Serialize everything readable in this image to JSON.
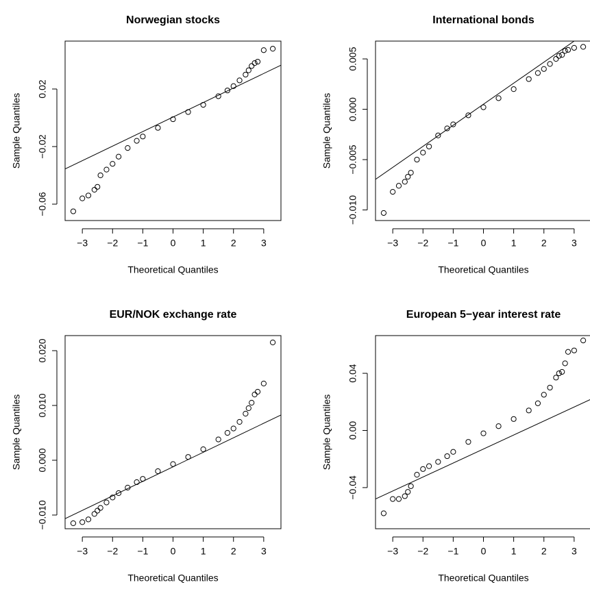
{
  "chart_data": [
    {
      "type": "scatter",
      "title": "Norwegian stocks",
      "xlabel": "Theoretical Quantiles",
      "ylabel": "Sample Quantiles",
      "color": "#000000",
      "x": [
        -3.3,
        -3.0,
        -2.8,
        -2.6,
        -2.5,
        -2.4,
        -2.2,
        -2.0,
        -1.8,
        -1.5,
        -1.2,
        -1.0,
        -0.5,
        0,
        0.5,
        1.0,
        1.5,
        1.8,
        2.0,
        2.2,
        2.4,
        2.5,
        2.6,
        2.7,
        2.8,
        3.0,
        3.3
      ],
      "y": [
        -0.065,
        -0.056,
        -0.054,
        -0.05,
        -0.048,
        -0.04,
        -0.036,
        -0.032,
        -0.027,
        -0.021,
        -0.016,
        -0.013,
        -0.007,
        -0.001,
        0.004,
        0.009,
        0.015,
        0.019,
        0.022,
        0.026,
        0.03,
        0.033,
        0.036,
        0.038,
        0.039,
        0.047,
        0.048
      ],
      "reference_line": {
        "intercept": 0.0005,
        "slope": 0.0101
      },
      "xlim": [
        -3.57,
        3.57
      ],
      "ylim": [
        -0.0714,
        0.0533
      ],
      "xticks": [
        {
          "value": -3,
          "label": "−3"
        },
        {
          "value": -2,
          "label": "−2"
        },
        {
          "value": -1,
          "label": "−1"
        },
        0,
        1,
        2,
        3
      ],
      "yticks": [
        {
          "value": -0.06,
          "label": "−0.06"
        },
        {
          "value": -0.02,
          "label": "−0.02"
        },
        0.02
      ]
    },
    {
      "type": "scatter",
      "title": "International bonds",
      "xlabel": "Theoretical Quantiles",
      "ylabel": "Sample Quantiles",
      "color": "#000000",
      "x": [
        -3.3,
        -3.0,
        -2.8,
        -2.6,
        -2.5,
        -2.4,
        -2.2,
        -2.0,
        -1.8,
        -1.5,
        -1.2,
        -1.0,
        -0.5,
        0,
        0.5,
        1.0,
        1.5,
        1.8,
        2.0,
        2.2,
        2.4,
        2.5,
        2.6,
        2.7,
        2.8,
        3.0,
        3.3
      ],
      "y": [
        -0.0103,
        -0.0082,
        -0.0076,
        -0.0072,
        -0.0067,
        -0.0063,
        -0.005,
        -0.0043,
        -0.0037,
        -0.0026,
        -0.0019,
        -0.0015,
        -0.0006,
        0.0002,
        0.0011,
        0.002,
        0.003,
        0.0036,
        0.004,
        0.0045,
        0.005,
        0.0053,
        0.0054,
        0.0058,
        0.0059,
        0.0061,
        0.0062
      ],
      "reference_line": {
        "intercept": 0.0005,
        "slope": 0.00209
      },
      "xlim": [
        -3.57,
        3.57
      ],
      "ylim": [
        -0.01105,
        0.00677
      ],
      "xticks": [
        {
          "value": -3,
          "label": "−3"
        },
        {
          "value": -2,
          "label": "−2"
        },
        {
          "value": -1,
          "label": "−1"
        },
        0,
        1,
        2,
        3
      ],
      "yticks": [
        {
          "value": -0.01,
          "label": "−0.010"
        },
        {
          "value": -0.005,
          "label": "−0.005"
        },
        {
          "value": 0,
          "label": "0.000"
        },
        0.005
      ]
    },
    {
      "type": "scatter",
      "title": "EUR/NOK exchange rate",
      "xlabel": "Theoretical Quantiles",
      "ylabel": "Sample Quantiles",
      "color": "#000000",
      "x": [
        -3.3,
        -3.0,
        -2.8,
        -2.6,
        -2.5,
        -2.4,
        -2.2,
        -2.0,
        -1.8,
        -1.5,
        -1.2,
        -1.0,
        -0.5,
        0,
        0.5,
        1.0,
        1.5,
        1.8,
        2.0,
        2.2,
        2.4,
        2.5,
        2.6,
        2.7,
        2.8,
        3.0,
        3.3
      ],
      "y": [
        -0.0115,
        -0.0113,
        -0.0108,
        -0.0098,
        -0.0092,
        -0.0087,
        -0.0077,
        -0.0068,
        -0.006,
        -0.005,
        -0.004,
        -0.0034,
        -0.002,
        -0.0007,
        0.0006,
        0.002,
        0.0038,
        0.005,
        0.0058,
        0.007,
        0.0085,
        0.0095,
        0.0105,
        0.012,
        0.0125,
        0.014,
        0.0215
      ],
      "reference_line": {
        "intercept": -0.0012,
        "slope": 0.00265
      },
      "xlim": [
        -3.57,
        3.57
      ],
      "ylim": [
        -0.0125,
        0.02275
      ],
      "xticks": [
        {
          "value": -3,
          "label": "−3"
        },
        {
          "value": -2,
          "label": "−2"
        },
        {
          "value": -1,
          "label": "−1"
        },
        0,
        1,
        2,
        3
      ],
      "yticks": [
        {
          "value": -0.01,
          "label": "−0.010"
        },
        {
          "value": 0,
          "label": "0.000"
        },
        {
          "value": 0.01,
          "label": "0.010"
        },
        {
          "value": 0.02,
          "label": "0.020"
        }
      ]
    },
    {
      "type": "scatter",
      "title": "European 5−year interest rate",
      "xlabel": "Theoretical Quantiles",
      "ylabel": "Sample Quantiles",
      "color": "#000000",
      "x": [
        -3.3,
        -3.0,
        -2.8,
        -2.6,
        -2.5,
        -2.4,
        -2.2,
        -2.0,
        -1.8,
        -1.5,
        -1.2,
        -1.0,
        -0.5,
        0,
        0.5,
        1.0,
        1.5,
        1.8,
        2.0,
        2.2,
        2.4,
        2.5,
        2.6,
        2.7,
        2.8,
        3.0,
        3.3
      ],
      "y": [
        -0.058,
        -0.048,
        -0.048,
        -0.046,
        -0.043,
        -0.039,
        -0.031,
        -0.027,
        -0.025,
        -0.022,
        -0.018,
        -0.015,
        -0.008,
        -0.002,
        0.003,
        0.008,
        0.014,
        0.019,
        0.025,
        0.03,
        0.037,
        0.04,
        0.041,
        0.047,
        0.055,
        0.056,
        0.063
      ],
      "reference_line": {
        "intercept": -0.013,
        "slope": 0.0098
      },
      "xlim": [
        -3.57,
        3.57
      ],
      "ylim": [
        -0.0688,
        0.0664
      ],
      "xticks": [
        {
          "value": -3,
          "label": "−3"
        },
        {
          "value": -2,
          "label": "−2"
        },
        {
          "value": -1,
          "label": "−1"
        },
        0,
        1,
        2,
        3
      ],
      "yticks": [
        {
          "value": -0.04,
          "label": "−0.04"
        },
        {
          "value": 0,
          "label": "0.00"
        },
        0.04
      ]
    }
  ]
}
